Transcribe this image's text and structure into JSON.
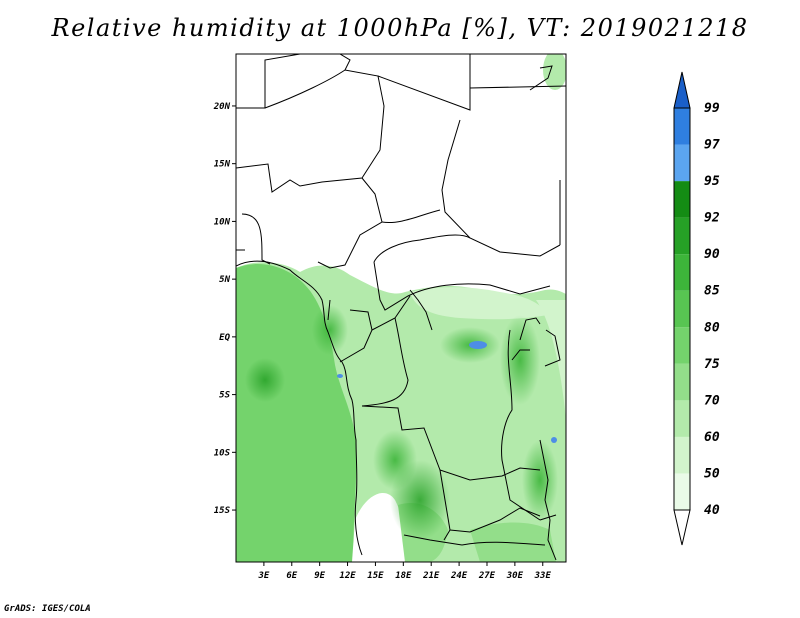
{
  "title": "Relative humidity at 1000hPa [%], VT: 2019021218",
  "footer": "GrADS: IGES/COLA",
  "map": {
    "lat_range": [
      -19.5,
      24.5
    ],
    "lon_range": [
      0,
      35.5
    ],
    "y_ticks": [
      {
        "lat": 20,
        "label": "20N"
      },
      {
        "lat": 15,
        "label": "15N"
      },
      {
        "lat": 10,
        "label": "10N"
      },
      {
        "lat": 5,
        "label": "5N"
      },
      {
        "lat": 0,
        "label": "EQ"
      },
      {
        "lat": -5,
        "label": "5S"
      },
      {
        "lat": -10,
        "label": "10S"
      },
      {
        "lat": -15,
        "label": "15S"
      }
    ],
    "x_ticks": [
      {
        "lon": 3,
        "label": "3E"
      },
      {
        "lon": 6,
        "label": "6E"
      },
      {
        "lon": 9,
        "label": "9E"
      },
      {
        "lon": 12,
        "label": "12E"
      },
      {
        "lon": 15,
        "label": "15E"
      },
      {
        "lon": 18,
        "label": "18E"
      },
      {
        "lon": 21,
        "label": "21E"
      },
      {
        "lon": 24,
        "label": "24E"
      },
      {
        "lon": 27,
        "label": "27E"
      },
      {
        "lon": 30,
        "label": "30E"
      },
      {
        "lon": 33,
        "label": "33E"
      }
    ]
  },
  "colorbar": {
    "levels": [
      "40",
      "50",
      "60",
      "70",
      "75",
      "80",
      "85",
      "90",
      "92",
      "95",
      "97",
      "99"
    ],
    "colors": [
      "#ffffff",
      "#eafbe8",
      "#d2f4cc",
      "#b3eaab",
      "#93de8a",
      "#74d36c",
      "#58c552",
      "#3db53a",
      "#26a126",
      "#148c14",
      "#5ba5f0",
      "#2f7fe0",
      "#1a5fc8"
    ]
  },
  "palette": {
    "land_white": "#ffffff",
    "ocean_green": "#74d36c",
    "lake_blue": "#4d8ee6"
  }
}
